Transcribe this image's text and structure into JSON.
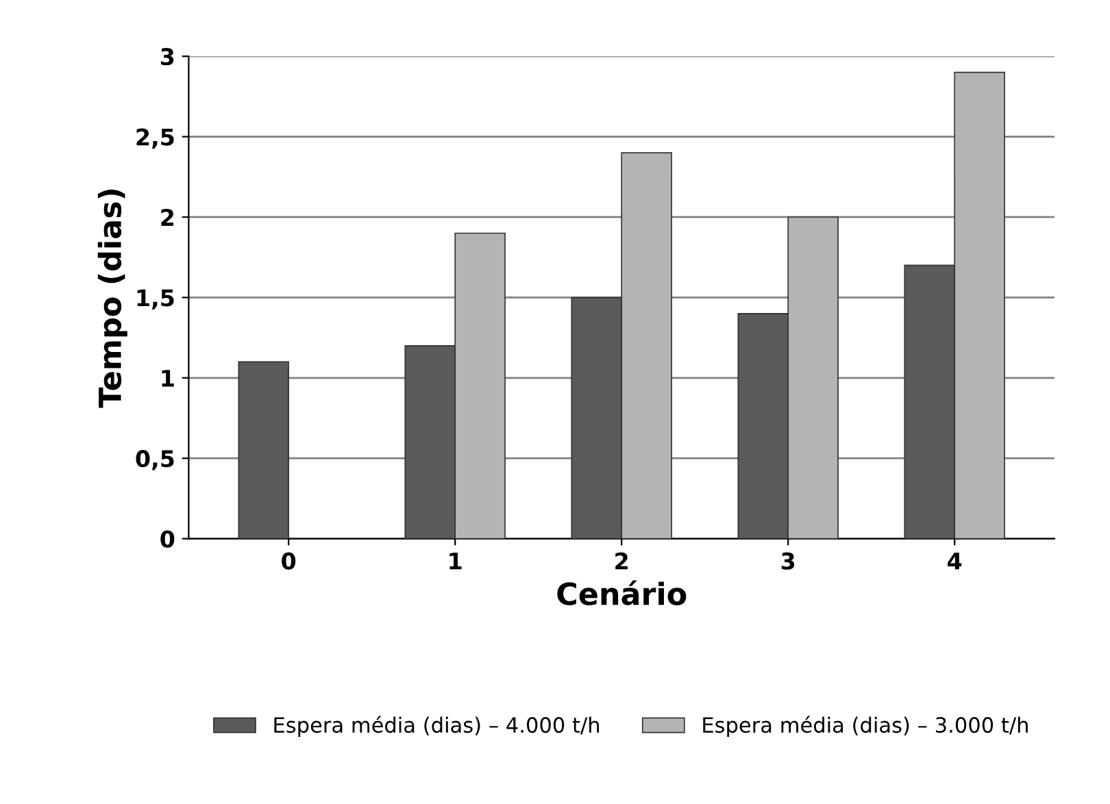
{
  "chart_data": {
    "type": "bar",
    "xlabel": "Cenário",
    "ylabel": "Tempo (dias)",
    "categories": [
      "0",
      "1",
      "2",
      "3",
      "4"
    ],
    "series": [
      {
        "name": "Espera média (dias) – 4.000 t/h",
        "color": "#5a5a5a",
        "values": [
          1.1,
          1.2,
          1.5,
          1.4,
          1.7
        ]
      },
      {
        "name": "Espera média (dias) – 3.000 t/h",
        "color": "#b4b4b4",
        "values": [
          null,
          1.9,
          2.4,
          2.0,
          2.9
        ]
      }
    ],
    "ylim": [
      0,
      3
    ],
    "yticks": [
      0,
      {
        "value": 0.5,
        "label": "0,5"
      },
      1,
      {
        "value": 1.5,
        "label": "1,5"
      },
      2,
      {
        "value": 2.5,
        "label": "2,5"
      },
      3
    ],
    "grid": "y",
    "legend": "bottom"
  }
}
